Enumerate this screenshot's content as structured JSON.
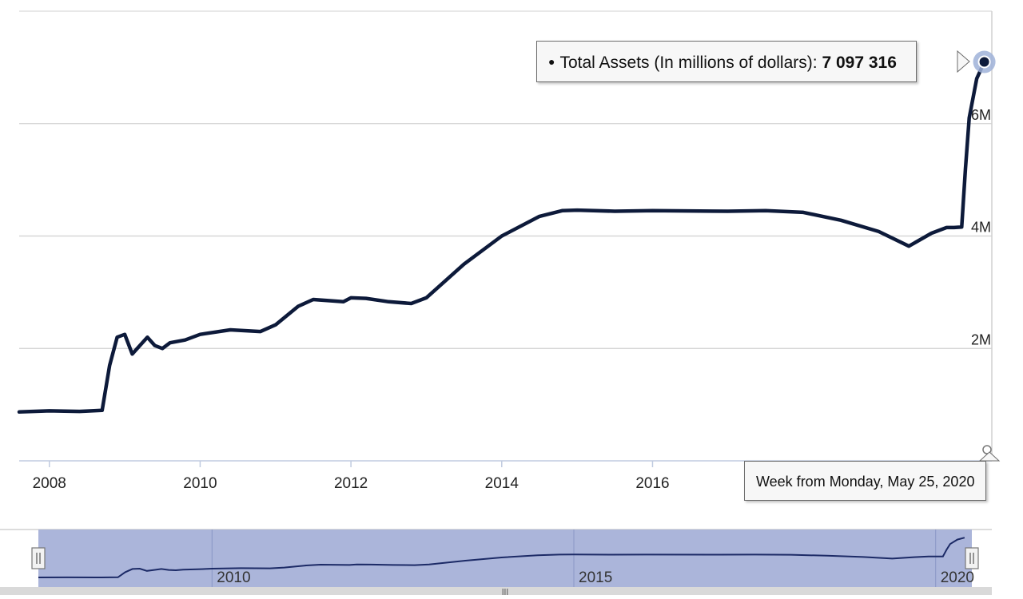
{
  "tooltip": {
    "series_label": "Total Assets (In millions of dollars)",
    "separator": ":",
    "value": "7 097 316",
    "date": "Week from Monday, May 25, 2020"
  },
  "navigator": {
    "tick_labels": [
      "2010",
      "2015",
      "2020"
    ],
    "handle_glyph": "|||"
  },
  "colors": {
    "line": "#0d1a3a",
    "grid": "#d0d0d0",
    "axis": "#c0cbe0",
    "navigator_fill": "#a7b1d8",
    "marker_halo": "#9fb1d8",
    "tooltip_bg": "#f7f7f7"
  },
  "chart_data": {
    "type": "line",
    "title": "",
    "xlabel": "",
    "ylabel": "",
    "x_ticks": [
      "2008",
      "2010",
      "2012",
      "2014",
      "2016"
    ],
    "y_ticks": [
      "2M",
      "4M",
      "6M"
    ],
    "y_tick_values": [
      2000000,
      4000000,
      6000000
    ],
    "xlim": [
      2007.6,
      2020.5
    ],
    "ylim": [
      0,
      8000000
    ],
    "grid": true,
    "legend": "none",
    "series": [
      {
        "name": "Total Assets (In millions of dollars)",
        "x": [
          2007.6,
          2008.0,
          2008.4,
          2008.7,
          2008.8,
          2008.9,
          2009.0,
          2009.1,
          2009.2,
          2009.3,
          2009.4,
          2009.5,
          2009.6,
          2009.8,
          2010.0,
          2010.4,
          2010.8,
          2011.0,
          2011.3,
          2011.5,
          2011.9,
          2012.0,
          2012.2,
          2012.5,
          2012.8,
          2013.0,
          2013.5,
          2014.0,
          2014.5,
          2014.8,
          2015.0,
          2015.5,
          2016.0,
          2017.0,
          2017.5,
          2018.0,
          2018.5,
          2019.0,
          2019.4,
          2019.7,
          2019.9,
          2020.0,
          2020.1,
          2020.15,
          2020.2,
          2020.3,
          2020.4
        ],
        "y": [
          870000,
          890000,
          880000,
          900000,
          1700000,
          2200000,
          2250000,
          1900000,
          2050000,
          2200000,
          2050000,
          2000000,
          2100000,
          2150000,
          2250000,
          2330000,
          2300000,
          2420000,
          2750000,
          2870000,
          2830000,
          2900000,
          2890000,
          2830000,
          2800000,
          2900000,
          3500000,
          4000000,
          4350000,
          4450000,
          4460000,
          4440000,
          4450000,
          4440000,
          4450000,
          4420000,
          4280000,
          4080000,
          3820000,
          4050000,
          4150000,
          4150000,
          4160000,
          5200000,
          6100000,
          6800000,
          7097316
        ]
      }
    ]
  }
}
